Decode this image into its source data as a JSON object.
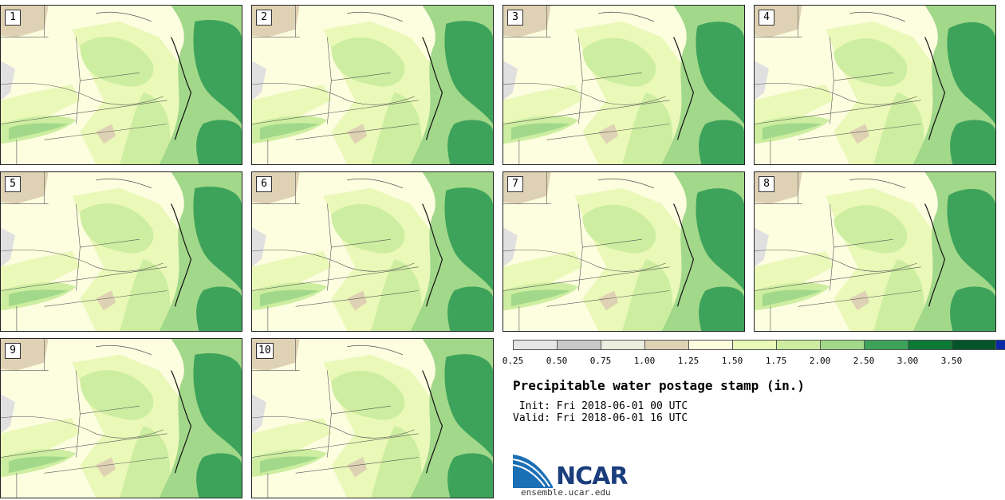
{
  "stamps": [
    "1",
    "2",
    "3",
    "4",
    "5",
    "6",
    "7",
    "8",
    "9",
    "10"
  ],
  "colorbar": {
    "ticks": [
      "0.25",
      "0.50",
      "0.75",
      "1.00",
      "1.25",
      "1.50",
      "1.75",
      "2.00",
      "2.50",
      "3.00",
      "3.50"
    ],
    "colors": [
      "#e6e6e6",
      "#c8c8c8",
      "#ededdf",
      "#dfd2b4",
      "#fdfde0",
      "#eaf8b8",
      "#cdeea0",
      "#a2d88a",
      "#3ea35a",
      "#0b7a34",
      "#05552a",
      "#0a2aa8"
    ]
  },
  "title": "Precipitable water postage stamp (in.)",
  "init": " Init: Fri 2018-06-01 00 UTC",
  "valid": "Valid: Fri 2018-06-01 16 UTC",
  "logo": {
    "text": "NCAR",
    "url": "ensemble.ucar.edu"
  },
  "map_colors": {
    "land_dry": "#fdfde0",
    "land_light": "#eaf8b8",
    "mid": "#cdeea0",
    "wet": "#a2d88a",
    "wetter": "#3ea35a",
    "ocean": "#3ea35a",
    "tan": "#dfd2b4",
    "gray": "#e0e0e0"
  }
}
